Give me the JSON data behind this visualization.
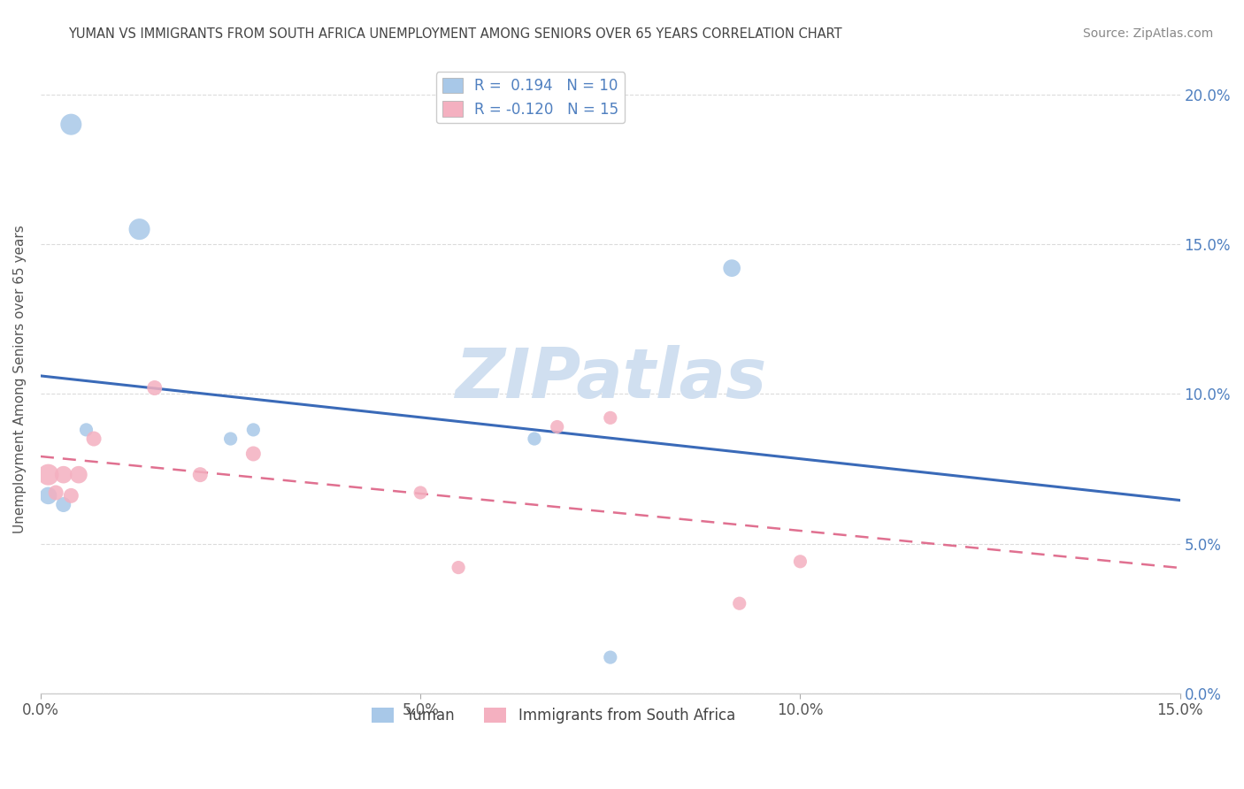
{
  "title": "YUMAN VS IMMIGRANTS FROM SOUTH AFRICA UNEMPLOYMENT AMONG SENIORS OVER 65 YEARS CORRELATION CHART",
  "source": "Source: ZipAtlas.com",
  "ylabel": "Unemployment Among Seniors over 65 years",
  "xlim": [
    0.0,
    0.15
  ],
  "ylim": [
    0.0,
    0.21
  ],
  "xticks": [
    0.0,
    0.05,
    0.1,
    0.15
  ],
  "xtick_labels": [
    "0.0%",
    "5.0%",
    "10.0%",
    "15.0%"
  ],
  "yticks": [
    0.0,
    0.05,
    0.1,
    0.15,
    0.2
  ],
  "ytick_labels_right": [
    "0.0%",
    "5.0%",
    "10.0%",
    "15.0%",
    "20.0%"
  ],
  "yuman_x": [
    0.001,
    0.003,
    0.004,
    0.006,
    0.013,
    0.025,
    0.028,
    0.065,
    0.075,
    0.091
  ],
  "yuman_y": [
    0.066,
    0.063,
    0.19,
    0.088,
    0.155,
    0.085,
    0.088,
    0.085,
    0.012,
    0.142
  ],
  "yuman_size": [
    200,
    150,
    300,
    120,
    300,
    120,
    120,
    120,
    120,
    200
  ],
  "immigrants_x": [
    0.001,
    0.002,
    0.003,
    0.004,
    0.005,
    0.007,
    0.015,
    0.021,
    0.028,
    0.05,
    0.055,
    0.068,
    0.075,
    0.092,
    0.1
  ],
  "immigrants_y": [
    0.073,
    0.067,
    0.073,
    0.066,
    0.073,
    0.085,
    0.102,
    0.073,
    0.08,
    0.067,
    0.042,
    0.089,
    0.092,
    0.03,
    0.044
  ],
  "immigrants_size": [
    300,
    150,
    200,
    150,
    200,
    150,
    150,
    150,
    150,
    120,
    120,
    120,
    120,
    120,
    120
  ],
  "yuman_color": "#a8c8e8",
  "immigrants_color": "#f4b0c0",
  "yuman_R": 0.194,
  "yuman_N": 10,
  "immigrants_R": -0.12,
  "immigrants_N": 15,
  "trend_yuman_color": "#3a6ab8",
  "trend_immigrants_color": "#e07090",
  "watermark": "ZIPatlas",
  "watermark_color": "#d0dff0",
  "legend_label_yuman": "Yuman",
  "legend_label_immigrants": "Immigrants from South Africa",
  "background_color": "#ffffff",
  "grid_color": "#cccccc",
  "right_tick_color": "#5080c0",
  "title_color": "#444444",
  "source_color": "#888888"
}
